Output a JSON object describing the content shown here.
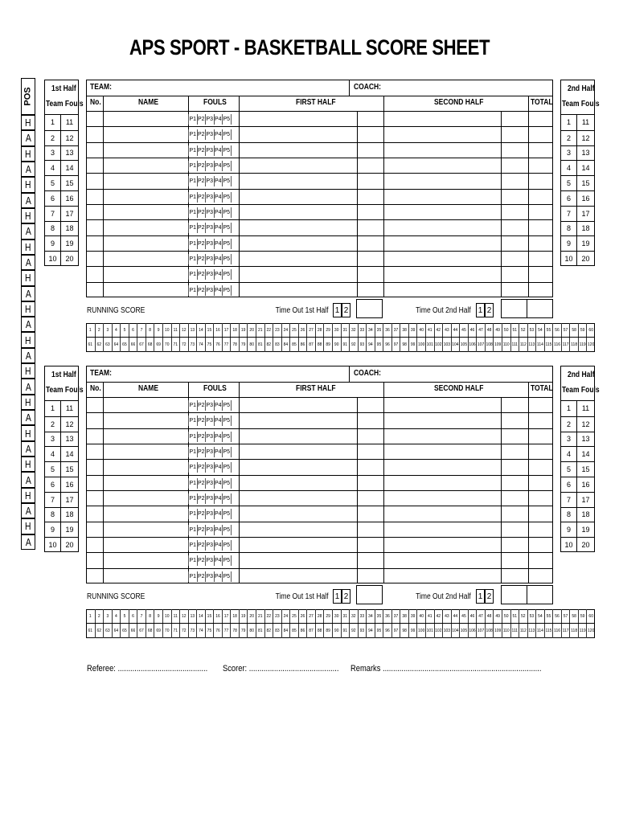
{
  "title": "APS SPORT  -  BASKETBALL SCORE SHEET",
  "pos_header": "POS",
  "pos_values": [
    "H",
    "A",
    "H",
    "A",
    "H",
    "A",
    "H",
    "A",
    "H",
    "A",
    "H",
    "A",
    "H",
    "A",
    "H",
    "A",
    "H",
    "A",
    "H",
    "A",
    "H",
    "A",
    "H",
    "A",
    "H",
    "A",
    "H",
    "A"
  ],
  "team_fouls": {
    "first_half_line1": "1st Half",
    "second_half_line1": "2nd Half",
    "line2": "Team Fouls",
    "numbers": [
      [
        1,
        11
      ],
      [
        2,
        12
      ],
      [
        3,
        13
      ],
      [
        4,
        14
      ],
      [
        5,
        15
      ],
      [
        6,
        16
      ],
      [
        7,
        17
      ],
      [
        8,
        18
      ],
      [
        9,
        19
      ],
      [
        10,
        20
      ]
    ]
  },
  "table": {
    "team_label": "TEAM:",
    "coach_label": "COACH:",
    "columns": {
      "no": "No.",
      "name": "NAME",
      "fouls": "FOULS",
      "first_half": "FIRST HALF",
      "second_half": "SECOND HALF",
      "total": "TOTAL"
    },
    "foul_labels": [
      "P1",
      "P2",
      "P3",
      "P4",
      "P5"
    ],
    "player_rows": 12
  },
  "running_score": {
    "label": "RUNNING SCORE",
    "timeout_1st": "Time Out 1st Half",
    "timeout_2nd": "Time Out 2nd Half",
    "timeout_boxes": [
      "1",
      "2"
    ],
    "row1": [
      1,
      2,
      3,
      4,
      5,
      6,
      7,
      8,
      9,
      10,
      11,
      12,
      13,
      14,
      15,
      16,
      17,
      18,
      19,
      20,
      21,
      22,
      23,
      24,
      25,
      26,
      27,
      28,
      29,
      30,
      31,
      32,
      33,
      34,
      35,
      36,
      37,
      38,
      39,
      40,
      41,
      42,
      43,
      44,
      45,
      46,
      47,
      48,
      49,
      50,
      51,
      52,
      53,
      54,
      55,
      56,
      57,
      58,
      59,
      60
    ],
    "row2": [
      61,
      62,
      63,
      64,
      65,
      66,
      67,
      68,
      69,
      70,
      71,
      72,
      73,
      74,
      75,
      76,
      77,
      78,
      79,
      80,
      81,
      82,
      83,
      84,
      85,
      86,
      87,
      88,
      89,
      90,
      91,
      92,
      93,
      94,
      95,
      96,
      97,
      98,
      99,
      100,
      101,
      102,
      103,
      104,
      105,
      106,
      107,
      108,
      109,
      110,
      111,
      112,
      113,
      114,
      115,
      116,
      117,
      118,
      119,
      120
    ]
  },
  "footer": {
    "referee": "Referee: ...........................................",
    "scorer": "Scorer: ...........................................",
    "remarks": "Remarks ............................................................................"
  }
}
